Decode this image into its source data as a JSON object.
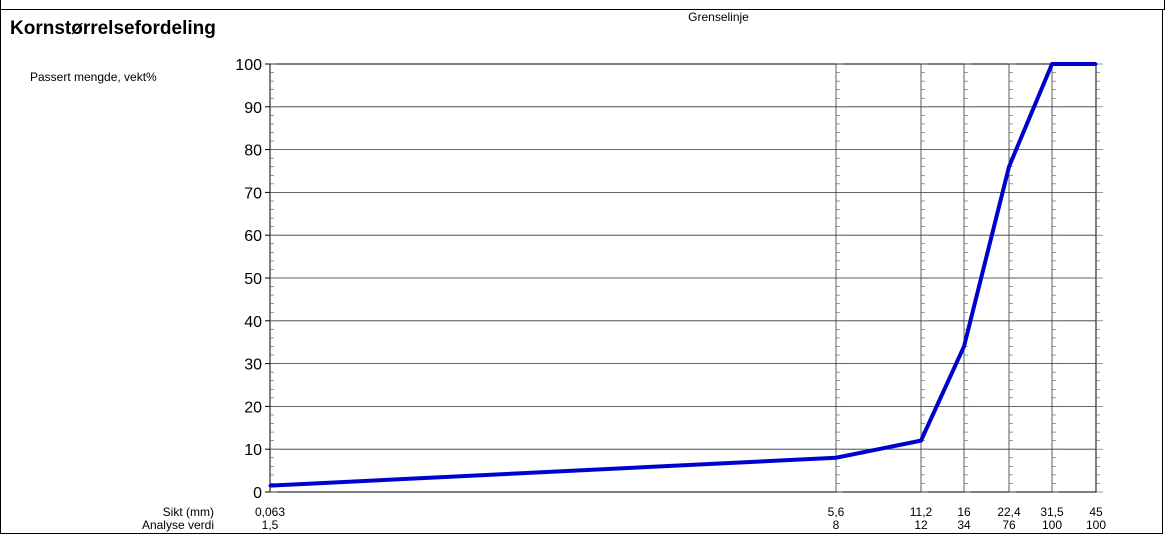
{
  "chart_data": {
    "type": "line",
    "title": "Kornstørrelsefordeling",
    "subtitle": "Grenselinje",
    "ylabel": "Passert mengde, vekt%",
    "ylim": [
      0,
      100
    ],
    "yticks": [
      0,
      10,
      20,
      30,
      40,
      50,
      60,
      70,
      80,
      90,
      100
    ],
    "grid": true,
    "row_labels": {
      "x": "Sikt (mm)",
      "values": "Analyse verdi"
    },
    "x": [
      "0,063",
      "5,6",
      "11,2",
      "16",
      "22,4",
      "31,5",
      "45"
    ],
    "series": [
      {
        "values": [
          1.5,
          8,
          12,
          34,
          76,
          100,
          100
        ],
        "color": "#0000cc"
      }
    ]
  }
}
